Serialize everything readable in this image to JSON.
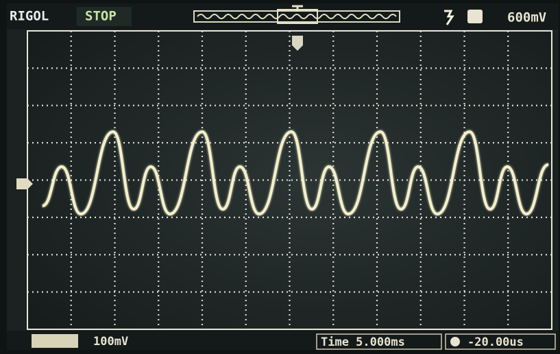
{
  "header": {
    "brand": "RIGOL",
    "status": "STOP",
    "trigger_level": "600mV"
  },
  "footer": {
    "scale": "100mV",
    "timebase": "Time 5.000ms",
    "offset": "-20.00us"
  }
}
